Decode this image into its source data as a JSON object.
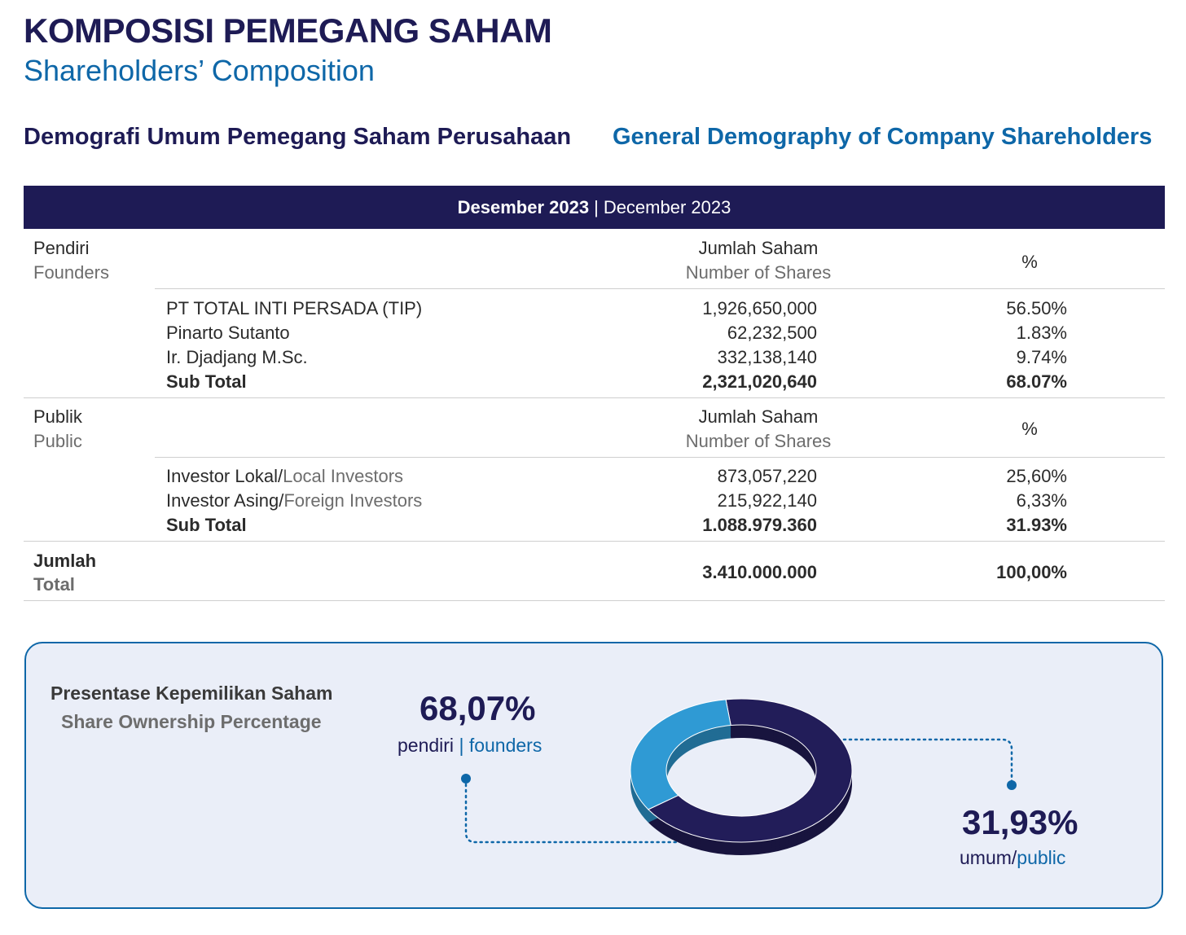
{
  "header": {
    "title_id": "KOMPOSISI PEMEGANG SAHAM",
    "title_en": "Shareholders’ Composition",
    "subtitle_id": "Demografi Umum Pemegang Saham Perusahaan",
    "subtitle_en": "General Demography of Company Shareholders"
  },
  "table": {
    "period_id": "Desember 2023",
    "separator": "|",
    "period_en": "December 2023",
    "founders": {
      "label_id": "Pendiri",
      "label_en": "Founders",
      "col_shares_id": "Jumlah Saham",
      "col_shares_en": "Number of Shares",
      "col_pct": "%",
      "rows": [
        {
          "name": "PT TOTAL INTI PERSADA (TIP)",
          "shares": "1,926,650,000",
          "pct": "56.50%"
        },
        {
          "name": "Pinarto Sutanto",
          "shares": "62,232,500",
          "pct": "1.83%"
        },
        {
          "name": "Ir. Djadjang M.Sc.",
          "shares": "332,138,140",
          "pct": "9.74%"
        }
      ],
      "subtotal_label": "Sub Total",
      "subtotal_shares": "2,321,020,640",
      "subtotal_pct": "68.07%"
    },
    "public": {
      "label_id": "Publik",
      "label_en": "Public",
      "col_shares_id": "Jumlah Saham",
      "col_shares_en": "Number of Shares",
      "col_pct": "%",
      "rows": [
        {
          "name_id": "Investor Lokal/",
          "name_en": "Local Investors",
          "shares": "873,057,220",
          "pct": "25,60%"
        },
        {
          "name_id": "Investor Asing/",
          "name_en": "Foreign Investors",
          "shares": "215,922,140",
          "pct": "6,33%"
        }
      ],
      "subtotal_label": "Sub Total",
      "subtotal_shares": "1.088.979.360",
      "subtotal_pct": "31.93%"
    },
    "total": {
      "label_id": "Jumlah",
      "label_en": "Total",
      "shares": "3.410.000.000",
      "pct": "100,00%"
    }
  },
  "ownership": {
    "title_id": "Presentase Kepemilikan Saham",
    "title_en": "Share Ownership Percentage",
    "founders_pct": "68,07%",
    "founders_label_id": "pendiri",
    "founders_sep": "|",
    "founders_label_en": "founders",
    "public_pct": "31,93%",
    "public_label_id": "umum/",
    "public_label_en": "public"
  },
  "chart_data": {
    "type": "pie",
    "style": "donut",
    "categories": [
      "pendiri | founders",
      "umum/public"
    ],
    "values": [
      68.07,
      31.93
    ],
    "colors": [
      "#221d59",
      "#2f9ad4"
    ]
  }
}
